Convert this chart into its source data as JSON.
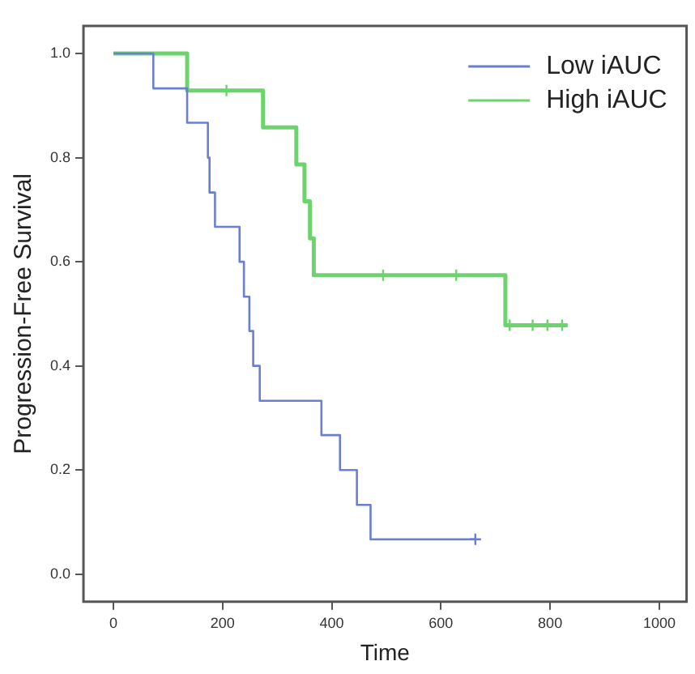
{
  "chart_data": {
    "type": "step",
    "xlabel": "Time",
    "ylabel": "Progression-Free Survival",
    "xlim": [
      -55,
      1050
    ],
    "ylim": [
      -0.053,
      1.053
    ],
    "xticks": [
      0,
      200,
      400,
      600,
      800,
      1000
    ],
    "yticks": [
      {
        "value": 0,
        "label": "0.0"
      },
      0.2,
      0.4,
      0.6,
      0.8,
      {
        "value": 1,
        "label": "1.0"
      }
    ],
    "grid": false,
    "legend": "top right",
    "series": [
      {
        "name": "Low iAUC",
        "color": "#6a7fd0",
        "x": [
          0,
          73,
          135,
          173,
          176,
          186,
          231,
          239,
          249,
          256,
          268,
          381,
          415,
          446,
          471,
          663
        ],
        "values": [
          1,
          0.933,
          0.867,
          0.8,
          0.733,
          0.667,
          0.6,
          0.533,
          0.467,
          0.4,
          0.333,
          0.267,
          0.2,
          0.133,
          0.067,
          0.067
        ]
      },
      {
        "name": "High iAUC",
        "color": "#6cd46c",
        "x": [
          0,
          135,
          274,
          335,
          350,
          360,
          367,
          718,
          832
        ],
        "values": [
          1,
          0.929,
          0.858,
          0.787,
          0.716,
          0.645,
          0.574,
          0.478,
          0.478
        ]
      },
      {
        "type": "scatter",
        "marker": "cross",
        "color": "#6a7fd0",
        "x": [
          663
        ],
        "values": [
          0.067
        ]
      },
      {
        "type": "scatter",
        "marker": "cross",
        "color": "#6cd46c",
        "x": [
          207,
          494,
          628,
          726,
          768,
          795,
          822
        ],
        "values": [
          0.929,
          0.574,
          0.574,
          0.478,
          0.478,
          0.478,
          0.478
        ]
      }
    ]
  }
}
